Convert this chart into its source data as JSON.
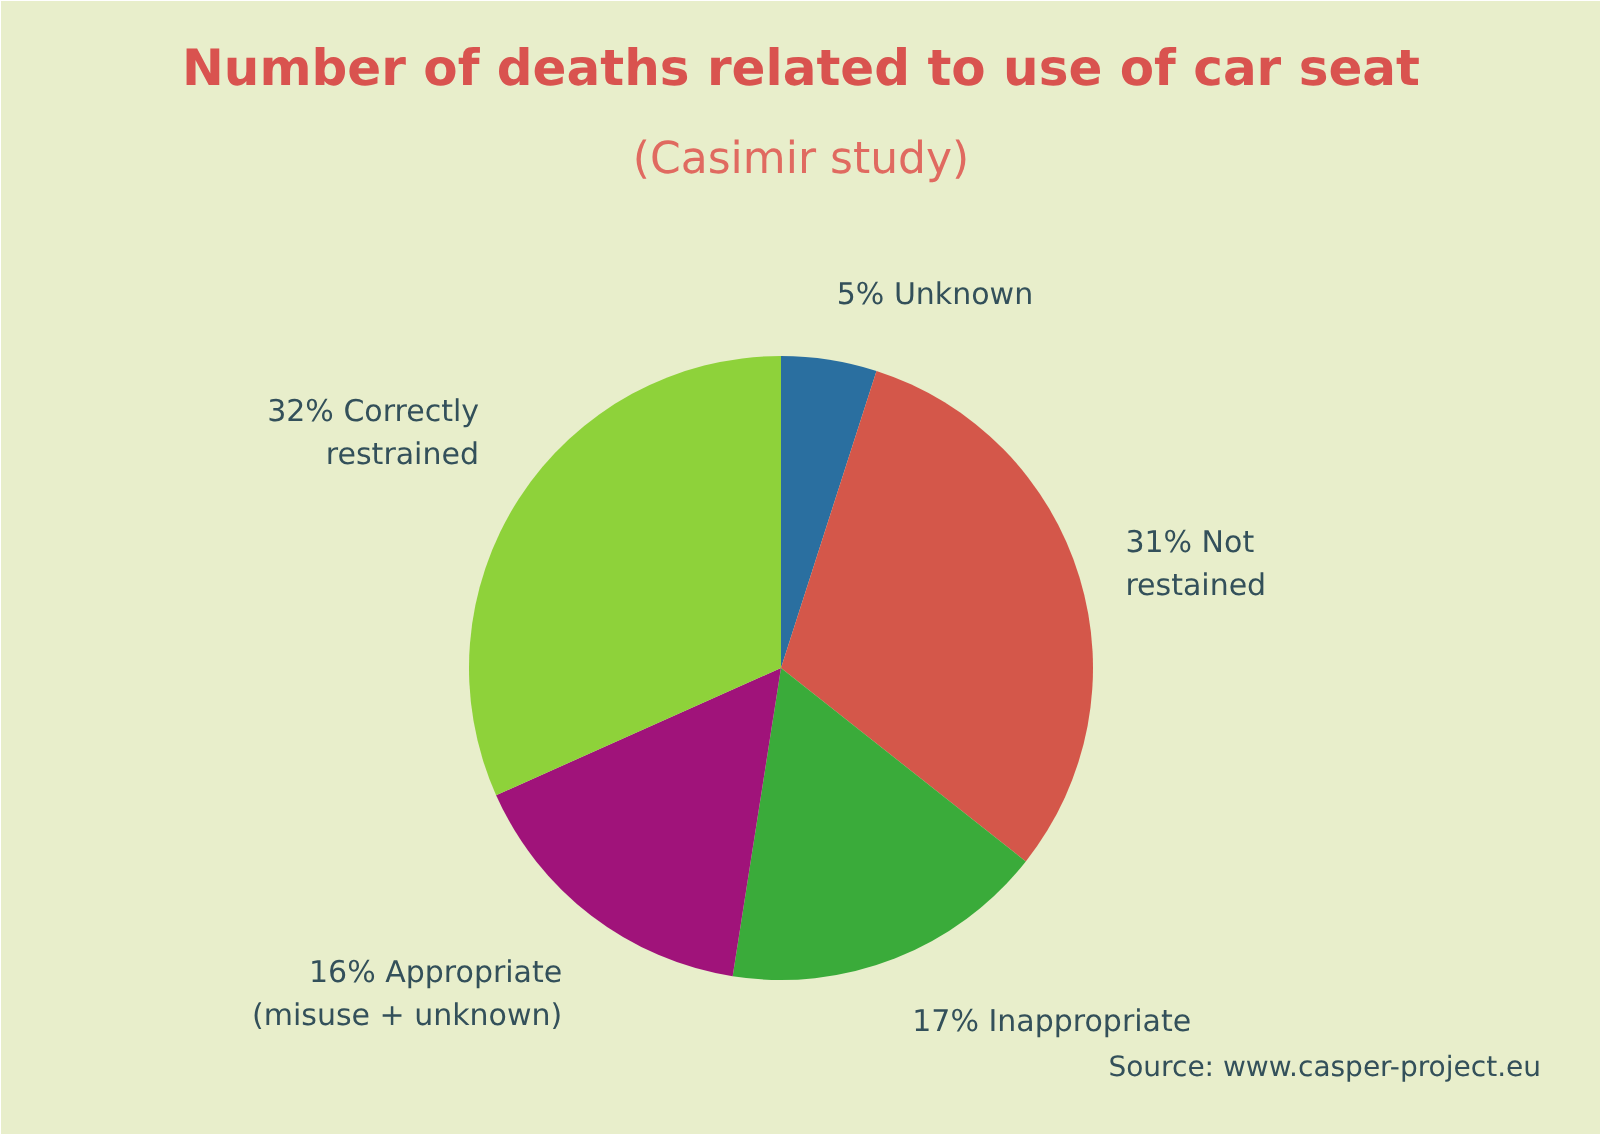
{
  "chart_data": {
    "type": "pie",
    "title": "Number of deaths related to use of car seat",
    "subtitle": "(Casimir study)",
    "categories": [
      "Unknown",
      "Not\nrestained",
      "Inappropriate",
      "Appropriate\n(misuse + unknown)",
      "Correctly\nrestrained"
    ],
    "values": [
      5,
      31,
      17,
      16,
      32
    ],
    "value_labels": [
      "5%",
      "31%",
      "17%",
      "16%",
      "32%"
    ],
    "colors": [
      "#2a6fa0",
      "#d4574a",
      "#3aab3a",
      "#a0137a",
      "#8ed23a"
    ],
    "annotations": [
      "Source: www.casper-project.eu"
    ]
  }
}
